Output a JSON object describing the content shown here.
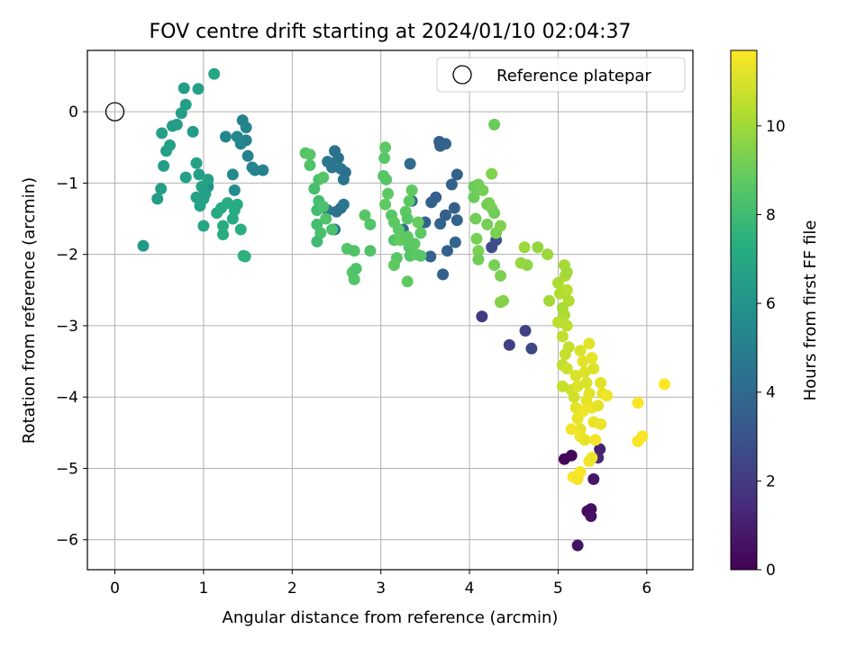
{
  "chart_data": {
    "type": "scatter",
    "title": "FOV centre drift starting at 2024/01/10 02:04:37",
    "xlabel": "Angular distance from reference (arcmin)",
    "ylabel": "Rotation from reference (arcmin)",
    "xlim": [
      -0.31,
      6.52
    ],
    "ylim": [
      -6.42,
      0.86
    ],
    "xticks": [
      0,
      1,
      2,
      3,
      4,
      5,
      6
    ],
    "yticks": [
      0,
      -1,
      -2,
      -3,
      -4,
      -5,
      -6
    ],
    "xtick_labels": [
      "0",
      "1",
      "2",
      "3",
      "4",
      "5",
      "6"
    ],
    "ytick_labels": [
      "0",
      "−1",
      "−2",
      "−3",
      "−4",
      "−5",
      "−6"
    ],
    "grid": true,
    "colormap": "viridis",
    "colorbar": {
      "label": "Hours from first FF file",
      "range": [
        0,
        11.7
      ],
      "ticks": [
        0,
        2,
        4,
        6,
        8,
        10
      ],
      "tick_labels": [
        "0",
        "2",
        "4",
        "6",
        "8",
        "10"
      ]
    },
    "legend": {
      "placement": "top-right",
      "entries": [
        {
          "label": "Reference platepar",
          "marker": "open-circle"
        }
      ]
    },
    "reference_point": {
      "x": 0,
      "y": 0
    },
    "points": [
      {
        "x": 5.07,
        "y": -4.87,
        "c": 0.1
      },
      {
        "x": 5.15,
        "y": -4.82,
        "c": 0.2
      },
      {
        "x": 5.33,
        "y": -5.6,
        "c": 0.3
      },
      {
        "x": 5.37,
        "y": -5.57,
        "c": 0.4
      },
      {
        "x": 5.37,
        "y": -5.67,
        "c": 0.5
      },
      {
        "x": 5.22,
        "y": -6.08,
        "c": 0.6
      },
      {
        "x": 5.4,
        "y": -5.15,
        "c": 0.7
      },
      {
        "x": 5.47,
        "y": -4.73,
        "c": 1.1
      },
      {
        "x": 5.45,
        "y": -4.85,
        "c": 1.3
      },
      {
        "x": 4.14,
        "y": -2.87,
        "c": 2.0
      },
      {
        "x": 4.45,
        "y": -3.27,
        "c": 2.2
      },
      {
        "x": 4.63,
        "y": -3.07,
        "c": 2.3
      },
      {
        "x": 4.7,
        "y": -3.32,
        "c": 2.5
      },
      {
        "x": 4.25,
        "y": -1.9,
        "c": 2.7
      },
      {
        "x": 4.3,
        "y": -1.8,
        "c": 2.8
      },
      {
        "x": 3.66,
        "y": -0.42,
        "c": 3.5
      },
      {
        "x": 3.67,
        "y": -0.48,
        "c": 3.6
      },
      {
        "x": 3.73,
        "y": -0.45,
        "c": 3.7
      },
      {
        "x": 3.86,
        "y": -0.88,
        "c": 3.6
      },
      {
        "x": 3.8,
        "y": -1.02,
        "c": 3.7
      },
      {
        "x": 3.62,
        "y": -1.2,
        "c": 3.5
      },
      {
        "x": 3.57,
        "y": -1.27,
        "c": 3.6
      },
      {
        "x": 3.5,
        "y": -1.55,
        "c": 3.7
      },
      {
        "x": 3.67,
        "y": -1.57,
        "c": 3.8
      },
      {
        "x": 3.73,
        "y": -1.45,
        "c": 3.5
      },
      {
        "x": 3.83,
        "y": -1.35,
        "c": 3.6
      },
      {
        "x": 3.86,
        "y": -1.52,
        "c": 3.7
      },
      {
        "x": 3.84,
        "y": -1.83,
        "c": 3.8
      },
      {
        "x": 3.75,
        "y": -1.95,
        "c": 3.6
      },
      {
        "x": 3.56,
        "y": -2.03,
        "c": 3.5
      },
      {
        "x": 3.7,
        "y": -2.28,
        "c": 3.6
      },
      {
        "x": 3.33,
        "y": -0.73,
        "c": 4.1
      },
      {
        "x": 3.35,
        "y": -1.25,
        "c": 4.2
      },
      {
        "x": 3.25,
        "y": -1.65,
        "c": 4.0
      },
      {
        "x": 2.48,
        "y": -0.55,
        "c": 4.3
      },
      {
        "x": 2.52,
        "y": -0.65,
        "c": 4.4
      },
      {
        "x": 2.45,
        "y": -0.78,
        "c": 4.5
      },
      {
        "x": 2.55,
        "y": -0.8,
        "c": 4.6
      },
      {
        "x": 2.58,
        "y": -0.95,
        "c": 4.5
      },
      {
        "x": 2.6,
        "y": -0.85,
        "c": 4.4
      },
      {
        "x": 2.4,
        "y": -0.7,
        "c": 4.6
      },
      {
        "x": 2.4,
        "y": -1.38,
        "c": 4.5
      },
      {
        "x": 2.5,
        "y": -1.4,
        "c": 4.4
      },
      {
        "x": 2.55,
        "y": -1.35,
        "c": 4.3
      },
      {
        "x": 2.58,
        "y": -1.3,
        "c": 4.6
      },
      {
        "x": 2.48,
        "y": -1.65,
        "c": 4.5
      },
      {
        "x": 1.44,
        "y": -0.12,
        "c": 5.2
      },
      {
        "x": 1.48,
        "y": -0.22,
        "c": 5.3
      },
      {
        "x": 1.48,
        "y": -0.4,
        "c": 5.1
      },
      {
        "x": 1.42,
        "y": -0.45,
        "c": 5.2
      },
      {
        "x": 1.38,
        "y": -0.35,
        "c": 5.4
      },
      {
        "x": 1.25,
        "y": -0.35,
        "c": 5.3
      },
      {
        "x": 1.5,
        "y": -0.62,
        "c": 5.2
      },
      {
        "x": 1.55,
        "y": -0.78,
        "c": 5.1
      },
      {
        "x": 1.58,
        "y": -0.82,
        "c": 5.3
      },
      {
        "x": 1.67,
        "y": -0.82,
        "c": 5.2
      },
      {
        "x": 1.33,
        "y": -0.88,
        "c": 5.5
      },
      {
        "x": 1.35,
        "y": -1.1,
        "c": 5.6
      },
      {
        "x": 1.05,
        "y": -1.05,
        "c": 5.8
      },
      {
        "x": 0.32,
        "y": -1.88,
        "c": 6.3
      },
      {
        "x": 0.48,
        "y": -1.22,
        "c": 6.4
      },
      {
        "x": 0.52,
        "y": -1.08,
        "c": 6.5
      },
      {
        "x": 0.55,
        "y": -0.76,
        "c": 6.5
      },
      {
        "x": 0.58,
        "y": -0.55,
        "c": 6.6
      },
      {
        "x": 0.53,
        "y": -0.3,
        "c": 6.6
      },
      {
        "x": 0.62,
        "y": -0.47,
        "c": 6.7
      },
      {
        "x": 0.65,
        "y": -0.2,
        "c": 6.5
      },
      {
        "x": 0.7,
        "y": -0.18,
        "c": 6.4
      },
      {
        "x": 0.75,
        "y": -0.02,
        "c": 6.5
      },
      {
        "x": 0.8,
        "y": 0.1,
        "c": 6.6
      },
      {
        "x": 0.78,
        "y": 0.33,
        "c": 6.5
      },
      {
        "x": 0.94,
        "y": 0.32,
        "c": 6.6
      },
      {
        "x": 0.88,
        "y": -0.28,
        "c": 6.4
      },
      {
        "x": 0.8,
        "y": -0.92,
        "c": 6.7
      },
      {
        "x": 0.92,
        "y": -0.72,
        "c": 6.6
      },
      {
        "x": 0.95,
        "y": -0.88,
        "c": 6.5
      },
      {
        "x": 0.98,
        "y": -1.05,
        "c": 6.7
      },
      {
        "x": 1.0,
        "y": -1.22,
        "c": 6.8
      },
      {
        "x": 0.92,
        "y": -1.2,
        "c": 6.6
      },
      {
        "x": 0.96,
        "y": -1.32,
        "c": 6.7
      },
      {
        "x": 1.02,
        "y": -1.15,
        "c": 6.6
      },
      {
        "x": 1.05,
        "y": -0.95,
        "c": 6.7
      },
      {
        "x": 1.0,
        "y": -1.6,
        "c": 6.8
      },
      {
        "x": 1.12,
        "y": 0.53,
        "c": 6.9
      },
      {
        "x": 1.15,
        "y": -1.42,
        "c": 7.0
      },
      {
        "x": 1.2,
        "y": -1.35,
        "c": 7.1
      },
      {
        "x": 1.22,
        "y": -1.6,
        "c": 7.2
      },
      {
        "x": 1.22,
        "y": -1.72,
        "c": 7.3
      },
      {
        "x": 1.27,
        "y": -1.28,
        "c": 7.2
      },
      {
        "x": 1.35,
        "y": -1.38,
        "c": 7.3
      },
      {
        "x": 1.33,
        "y": -1.5,
        "c": 7.1
      },
      {
        "x": 1.38,
        "y": -1.3,
        "c": 7.2
      },
      {
        "x": 1.42,
        "y": -1.65,
        "c": 7.3
      },
      {
        "x": 1.47,
        "y": -2.03,
        "c": 7.4
      },
      {
        "x": 1.45,
        "y": -2.02,
        "c": 7.5
      },
      {
        "x": 2.15,
        "y": -0.58,
        "c": 8.5
      },
      {
        "x": 2.2,
        "y": -0.6,
        "c": 8.6
      },
      {
        "x": 2.2,
        "y": -0.75,
        "c": 8.4
      },
      {
        "x": 2.3,
        "y": -0.95,
        "c": 8.3
      },
      {
        "x": 2.35,
        "y": -0.92,
        "c": 8.5
      },
      {
        "x": 2.25,
        "y": -1.08,
        "c": 8.2
      },
      {
        "x": 2.3,
        "y": -1.25,
        "c": 8.1
      },
      {
        "x": 2.28,
        "y": -1.38,
        "c": 8.0
      },
      {
        "x": 2.28,
        "y": -1.58,
        "c": 8.1
      },
      {
        "x": 2.32,
        "y": -1.7,
        "c": 8.2
      },
      {
        "x": 2.28,
        "y": -1.82,
        "c": 8.0
      },
      {
        "x": 2.35,
        "y": -1.33,
        "c": 8.3
      },
      {
        "x": 2.38,
        "y": -1.5,
        "c": 8.4
      },
      {
        "x": 2.45,
        "y": -1.65,
        "c": 8.3
      },
      {
        "x": 2.62,
        "y": -1.92,
        "c": 8.5
      },
      {
        "x": 2.7,
        "y": -1.95,
        "c": 8.4
      },
      {
        "x": 2.68,
        "y": -2.25,
        "c": 8.6
      },
      {
        "x": 2.7,
        "y": -2.35,
        "c": 8.5
      },
      {
        "x": 2.72,
        "y": -2.2,
        "c": 8.4
      },
      {
        "x": 2.82,
        "y": -1.45,
        "c": 8.6
      },
      {
        "x": 2.88,
        "y": -1.58,
        "c": 8.5
      },
      {
        "x": 2.88,
        "y": -1.95,
        "c": 8.4
      },
      {
        "x": 3.05,
        "y": -0.5,
        "c": 8.7
      },
      {
        "x": 3.04,
        "y": -0.65,
        "c": 8.6
      },
      {
        "x": 3.03,
        "y": -0.9,
        "c": 8.5
      },
      {
        "x": 3.06,
        "y": -0.95,
        "c": 8.6
      },
      {
        "x": 3.08,
        "y": -1.15,
        "c": 8.7
      },
      {
        "x": 3.05,
        "y": -1.3,
        "c": 8.8
      },
      {
        "x": 3.12,
        "y": -1.45,
        "c": 8.6
      },
      {
        "x": 3.15,
        "y": -1.55,
        "c": 8.7
      },
      {
        "x": 3.15,
        "y": -1.8,
        "c": 8.5
      },
      {
        "x": 3.18,
        "y": -2.05,
        "c": 8.6
      },
      {
        "x": 3.15,
        "y": -2.15,
        "c": 8.8
      },
      {
        "x": 3.2,
        "y": -1.65,
        "c": 8.7
      },
      {
        "x": 3.22,
        "y": -1.8,
        "c": 8.9
      },
      {
        "x": 3.28,
        "y": -1.4,
        "c": 8.8
      },
      {
        "x": 3.3,
        "y": -1.5,
        "c": 8.6
      },
      {
        "x": 3.32,
        "y": -1.25,
        "c": 8.7
      },
      {
        "x": 3.35,
        "y": -1.1,
        "c": 8.8
      },
      {
        "x": 3.3,
        "y": -1.75,
        "c": 8.7
      },
      {
        "x": 3.32,
        "y": -1.9,
        "c": 8.6
      },
      {
        "x": 3.33,
        "y": -2.02,
        "c": 8.5
      },
      {
        "x": 3.38,
        "y": -1.85,
        "c": 8.7
      },
      {
        "x": 3.4,
        "y": -2.0,
        "c": 8.8
      },
      {
        "x": 3.42,
        "y": -1.55,
        "c": 8.9
      },
      {
        "x": 3.45,
        "y": -1.7,
        "c": 8.7
      },
      {
        "x": 3.45,
        "y": -2.02,
        "c": 8.6
      },
      {
        "x": 3.3,
        "y": -2.38,
        "c": 8.8
      },
      {
        "x": 4.05,
        "y": -1.05,
        "c": 9.0
      },
      {
        "x": 4.1,
        "y": -1.02,
        "c": 9.1
      },
      {
        "x": 4.15,
        "y": -1.1,
        "c": 9.2
      },
      {
        "x": 4.05,
        "y": -1.2,
        "c": 9.0
      },
      {
        "x": 4.07,
        "y": -1.5,
        "c": 9.1
      },
      {
        "x": 4.08,
        "y": -1.78,
        "c": 9.2
      },
      {
        "x": 4.1,
        "y": -1.95,
        "c": 9.3
      },
      {
        "x": 4.1,
        "y": -2.07,
        "c": 9.1
      },
      {
        "x": 4.2,
        "y": -1.3,
        "c": 9.0
      },
      {
        "x": 4.22,
        "y": -1.28,
        "c": 9.2
      },
      {
        "x": 4.25,
        "y": -1.35,
        "c": 9.3
      },
      {
        "x": 4.28,
        "y": -1.42,
        "c": 9.1
      },
      {
        "x": 4.25,
        "y": -0.87,
        "c": 9.4
      },
      {
        "x": 4.28,
        "y": -0.18,
        "c": 9.0
      },
      {
        "x": 4.2,
        "y": -1.58,
        "c": 9.2
      },
      {
        "x": 4.3,
        "y": -1.7,
        "c": 9.3
      },
      {
        "x": 4.35,
        "y": -1.6,
        "c": 9.4
      },
      {
        "x": 4.28,
        "y": -2.15,
        "c": 9.2
      },
      {
        "x": 4.35,
        "y": -2.3,
        "c": 9.3
      },
      {
        "x": 4.35,
        "y": -2.67,
        "c": 9.4
      },
      {
        "x": 4.38,
        "y": -2.65,
        "c": 9.5
      },
      {
        "x": 4.58,
        "y": -2.12,
        "c": 9.8
      },
      {
        "x": 4.62,
        "y": -1.9,
        "c": 9.9
      },
      {
        "x": 4.65,
        "y": -2.15,
        "c": 9.7
      },
      {
        "x": 4.77,
        "y": -1.9,
        "c": 9.8
      },
      {
        "x": 4.88,
        "y": -2.0,
        "c": 9.9
      },
      {
        "x": 4.9,
        "y": -2.65,
        "c": 10.0
      },
      {
        "x": 5.0,
        "y": -2.4,
        "c": 10.2
      },
      {
        "x": 5.02,
        "y": -2.55,
        "c": 10.3
      },
      {
        "x": 5.05,
        "y": -2.75,
        "c": 10.1
      },
      {
        "x": 5.07,
        "y": -2.85,
        "c": 10.2
      },
      {
        "x": 5.05,
        "y": -2.95,
        "c": 10.3
      },
      {
        "x": 5.07,
        "y": -2.15,
        "c": 10.1
      },
      {
        "x": 5.08,
        "y": -2.3,
        "c": 10.2
      },
      {
        "x": 5.1,
        "y": -2.25,
        "c": 10.0
      },
      {
        "x": 5.1,
        "y": -2.5,
        "c": 10.4
      },
      {
        "x": 5.12,
        "y": -2.65,
        "c": 10.3
      },
      {
        "x": 5.0,
        "y": -2.95,
        "c": 10.5
      },
      {
        "x": 5.05,
        "y": -3.15,
        "c": 10.6
      },
      {
        "x": 5.1,
        "y": -3.0,
        "c": 10.5
      },
      {
        "x": 5.12,
        "y": -3.3,
        "c": 10.6
      },
      {
        "x": 5.08,
        "y": -3.4,
        "c": 10.7
      },
      {
        "x": 5.05,
        "y": -3.55,
        "c": 10.6
      },
      {
        "x": 5.1,
        "y": -3.6,
        "c": 10.8
      },
      {
        "x": 5.05,
        "y": -3.85,
        "c": 10.7
      },
      {
        "x": 5.15,
        "y": -3.9,
        "c": 10.8
      },
      {
        "x": 5.18,
        "y": -4.0,
        "c": 10.9
      },
      {
        "x": 5.2,
        "y": -3.7,
        "c": 11.0
      },
      {
        "x": 5.22,
        "y": -3.85,
        "c": 11.1
      },
      {
        "x": 5.25,
        "y": -3.35,
        "c": 11.0
      },
      {
        "x": 5.28,
        "y": -3.5,
        "c": 11.2
      },
      {
        "x": 5.3,
        "y": -3.65,
        "c": 11.1
      },
      {
        "x": 5.32,
        "y": -3.8,
        "c": 11.0
      },
      {
        "x": 5.35,
        "y": -3.25,
        "c": 11.2
      },
      {
        "x": 5.38,
        "y": -3.45,
        "c": 11.3
      },
      {
        "x": 5.4,
        "y": -3.6,
        "c": 11.1
      },
      {
        "x": 5.2,
        "y": -4.15,
        "c": 11.2
      },
      {
        "x": 5.22,
        "y": -4.3,
        "c": 11.3
      },
      {
        "x": 5.25,
        "y": -4.45,
        "c": 11.2
      },
      {
        "x": 5.28,
        "y": -4.2,
        "c": 11.4
      },
      {
        "x": 5.32,
        "y": -4.05,
        "c": 11.3
      },
      {
        "x": 5.35,
        "y": -3.95,
        "c": 11.2
      },
      {
        "x": 5.38,
        "y": -4.15,
        "c": 11.4
      },
      {
        "x": 5.4,
        "y": -4.35,
        "c": 11.3
      },
      {
        "x": 5.45,
        "y": -4.12,
        "c": 11.2
      },
      {
        "x": 5.48,
        "y": -4.38,
        "c": 11.4
      },
      {
        "x": 5.5,
        "y": -3.95,
        "c": 11.3
      },
      {
        "x": 5.48,
        "y": -3.8,
        "c": 11.2
      },
      {
        "x": 5.55,
        "y": -3.98,
        "c": 11.4
      },
      {
        "x": 5.15,
        "y": -4.45,
        "c": 11.5
      },
      {
        "x": 5.25,
        "y": -4.55,
        "c": 11.4
      },
      {
        "x": 5.3,
        "y": -4.6,
        "c": 11.3
      },
      {
        "x": 5.35,
        "y": -4.9,
        "c": 11.5
      },
      {
        "x": 5.38,
        "y": -4.85,
        "c": 11.4
      },
      {
        "x": 5.42,
        "y": -4.6,
        "c": 11.5
      },
      {
        "x": 5.17,
        "y": -5.12,
        "c": 11.6
      },
      {
        "x": 5.22,
        "y": -5.15,
        "c": 11.5
      },
      {
        "x": 5.25,
        "y": -5.05,
        "c": 11.6
      },
      {
        "x": 5.9,
        "y": -4.08,
        "c": 11.6
      },
      {
        "x": 5.9,
        "y": -4.62,
        "c": 11.6
      },
      {
        "x": 5.95,
        "y": -4.55,
        "c": 11.6
      },
      {
        "x": 6.2,
        "y": -3.82,
        "c": 11.7
      }
    ]
  }
}
